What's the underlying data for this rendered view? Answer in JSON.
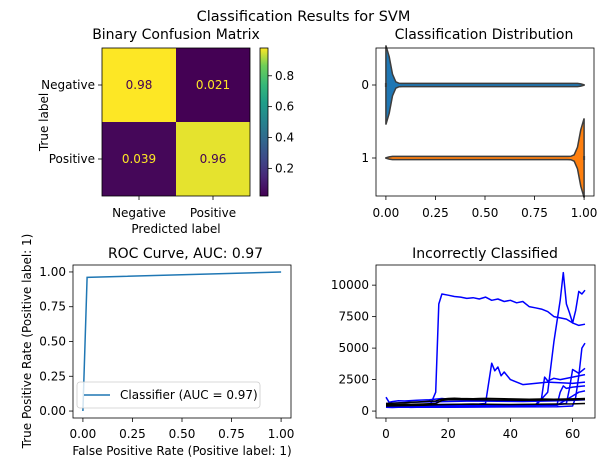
{
  "suptitle": "Classification Results for SVM",
  "chart_data": [
    {
      "type": "heatmap",
      "title": "Binary Confusion Matrix",
      "xlabel": "Predicted label",
      "ylabel": "True label",
      "x_categories": [
        "Negative",
        "Positive"
      ],
      "y_categories": [
        "Negative",
        "Positive"
      ],
      "values": [
        [
          "0.98",
          "0.021"
        ],
        [
          "0.039",
          "0.96"
        ]
      ],
      "colorbar": {
        "colormap": "viridis",
        "min": 0.021,
        "max": 0.98,
        "ticks": [
          "0.2",
          "0.4",
          "0.6",
          "0.8"
        ]
      }
    },
    {
      "type": "violin",
      "title": "Classification Distribution",
      "categories": [
        "0",
        "1"
      ],
      "xlim": [
        -0.05,
        1.05
      ],
      "x_ticks": [
        "0.00",
        "0.25",
        "0.50",
        "0.75",
        "1.00"
      ],
      "colors": [
        "#1f77b4",
        "#ff7f0e"
      ],
      "bulk_side": [
        0,
        1
      ]
    },
    {
      "type": "line",
      "title": "ROC Curve, AUC: 0.97",
      "xlabel": "False Positive Rate (Positive label: 1)",
      "ylabel": "True Positive Rate (Positive label: 1)",
      "xlim": [
        -0.05,
        1.05
      ],
      "ylim": [
        -0.05,
        1.05
      ],
      "x_ticks": [
        "0.00",
        "0.25",
        "0.50",
        "0.75",
        "1.00"
      ],
      "y_ticks": [
        "0.00",
        "0.25",
        "0.50",
        "0.75",
        "1.00"
      ],
      "series": [
        {
          "name": "Classifier (AUC = 0.97)",
          "color": "#1f77b4",
          "x": [
            0.0,
            0.021,
            1.0
          ],
          "y": [
            0.0,
            0.961,
            1.0
          ]
        }
      ],
      "legend": "lower right"
    },
    {
      "type": "line",
      "title": "Incorrectly Classified",
      "xlim": [
        -3.2,
        67.2
      ],
      "ylim": [
        -550,
        11600
      ],
      "x_ticks": [
        "0",
        "20",
        "40",
        "60"
      ],
      "y_ticks": [
        "0",
        "2500",
        "5000",
        "7500",
        "10000"
      ],
      "series": [
        {
          "color": "#0000ff",
          "x": [
            0,
            2,
            4,
            6,
            8,
            10,
            12,
            14,
            16,
            17,
            18,
            20,
            22,
            24,
            26,
            28,
            30,
            32,
            34,
            36,
            38,
            40,
            42,
            44,
            46,
            48,
            50,
            52,
            54,
            56,
            58,
            60,
            62,
            64
          ],
          "y": [
            300,
            280,
            300,
            320,
            290,
            300,
            310,
            330,
            1500,
            8500,
            9300,
            9200,
            9100,
            9050,
            8950,
            9000,
            8900,
            9050,
            8800,
            8900,
            8700,
            8800,
            8600,
            8700,
            8300,
            8200,
            8100,
            7900,
            7500,
            7400,
            7300,
            7000,
            6800,
            6900
          ]
        },
        {
          "color": "#0000ff",
          "x": [
            0,
            8,
            16,
            24,
            32,
            40,
            44,
            48,
            52,
            54,
            56,
            57,
            58,
            59,
            60,
            61,
            62,
            63,
            64
          ],
          "y": [
            300,
            320,
            310,
            330,
            340,
            350,
            360,
            400,
            1500,
            5500,
            8800,
            11000,
            8500,
            7800,
            7000,
            8000,
            9500,
            9300,
            9600
          ]
        },
        {
          "color": "#0000ff",
          "x": [
            0,
            16,
            24,
            30,
            32,
            34,
            35,
            36,
            37,
            38,
            40,
            44,
            48,
            52,
            56,
            60,
            64
          ],
          "y": [
            500,
            520,
            540,
            560,
            600,
            3800,
            3200,
            3500,
            2800,
            3100,
            2500,
            2100,
            2200,
            2300,
            2250,
            2200,
            2300
          ]
        },
        {
          "color": "#0000ff",
          "x": [
            0,
            20,
            30,
            40,
            48,
            50,
            51,
            52,
            54,
            56,
            60,
            64
          ],
          "y": [
            400,
            420,
            450,
            480,
            500,
            1000,
            2700,
            2400,
            2600,
            2500,
            2700,
            2900
          ]
        },
        {
          "color": "#0000ff",
          "x": [
            0,
            20,
            40,
            50,
            55,
            56,
            57,
            58,
            60,
            62,
            64
          ],
          "y": [
            350,
            380,
            400,
            450,
            500,
            1500,
            2000,
            1800,
            1900,
            1950,
            2000
          ]
        },
        {
          "color": "#0000ff",
          "x": [
            0,
            20,
            40,
            55,
            58,
            59,
            60,
            62,
            64
          ],
          "y": [
            450,
            460,
            480,
            500,
            600,
            1800,
            3300,
            3000,
            3400
          ]
        },
        {
          "color": "#0000ff",
          "x": [
            0,
            20,
            40,
            55,
            60,
            61,
            62,
            63,
            64
          ],
          "y": [
            300,
            310,
            330,
            350,
            400,
            1100,
            2800,
            5000,
            5400
          ]
        },
        {
          "color": "#0000ff",
          "x": [
            0,
            20,
            40,
            55,
            60,
            62,
            64
          ],
          "y": [
            400,
            420,
            440,
            460,
            1200,
            1500,
            1600
          ]
        },
        {
          "color": "#0000ff",
          "x": [
            0,
            1,
            2,
            4,
            6,
            10,
            14,
            16,
            18,
            20,
            24,
            28,
            32,
            36,
            40,
            44,
            48,
            52,
            56,
            60,
            64
          ],
          "y": [
            1100,
            700,
            750,
            820,
            800,
            860,
            900,
            950,
            1000,
            950,
            920,
            900,
            880,
            860,
            850,
            860,
            870,
            880,
            900,
            950,
            980
          ]
        },
        {
          "color": "#0000ff",
          "x": [
            0,
            4,
            8,
            12,
            16,
            20,
            24,
            28,
            32,
            36,
            40,
            44,
            48,
            52,
            56,
            60,
            64
          ],
          "y": [
            600,
            650,
            700,
            720,
            740,
            760,
            780,
            800,
            790,
            780,
            770,
            760,
            780,
            800,
            820,
            850,
            900
          ]
        },
        {
          "color": "#000000",
          "x": [
            0,
            2,
            4,
            6,
            8,
            10,
            12,
            14,
            16,
            18,
            20,
            22,
            24,
            26,
            28,
            30,
            32,
            34,
            36,
            38,
            40,
            42,
            44,
            46,
            48,
            50,
            52,
            54,
            56,
            58,
            60,
            62,
            64
          ],
          "y": [
            600,
            620,
            640,
            660,
            700,
            720,
            750,
            780,
            800,
            950,
            1000,
            1020,
            1000,
            990,
            980,
            1000,
            1010,
            1000,
            990,
            980,
            970,
            960,
            950,
            940,
            950,
            960,
            950,
            940,
            950,
            960,
            970,
            980,
            1000
          ]
        },
        {
          "color": "#000000",
          "x": [
            0,
            4,
            8,
            12,
            16,
            18,
            20,
            24,
            28,
            32,
            36,
            40,
            44,
            48,
            52,
            56,
            60,
            64
          ],
          "y": [
            500,
            520,
            540,
            560,
            600,
            850,
            900,
            910,
            900,
            890,
            880,
            870,
            860,
            870,
            880,
            890,
            900,
            920
          ]
        },
        {
          "color": "#000000",
          "x": [
            0,
            4,
            8,
            12,
            16,
            20,
            24,
            28,
            32,
            36,
            40,
            44,
            48,
            52,
            56,
            60,
            64
          ],
          "y": [
            400,
            420,
            440,
            460,
            500,
            520,
            540,
            550,
            540,
            530,
            520,
            530,
            540,
            550,
            560,
            570,
            600
          ]
        }
      ]
    }
  ]
}
